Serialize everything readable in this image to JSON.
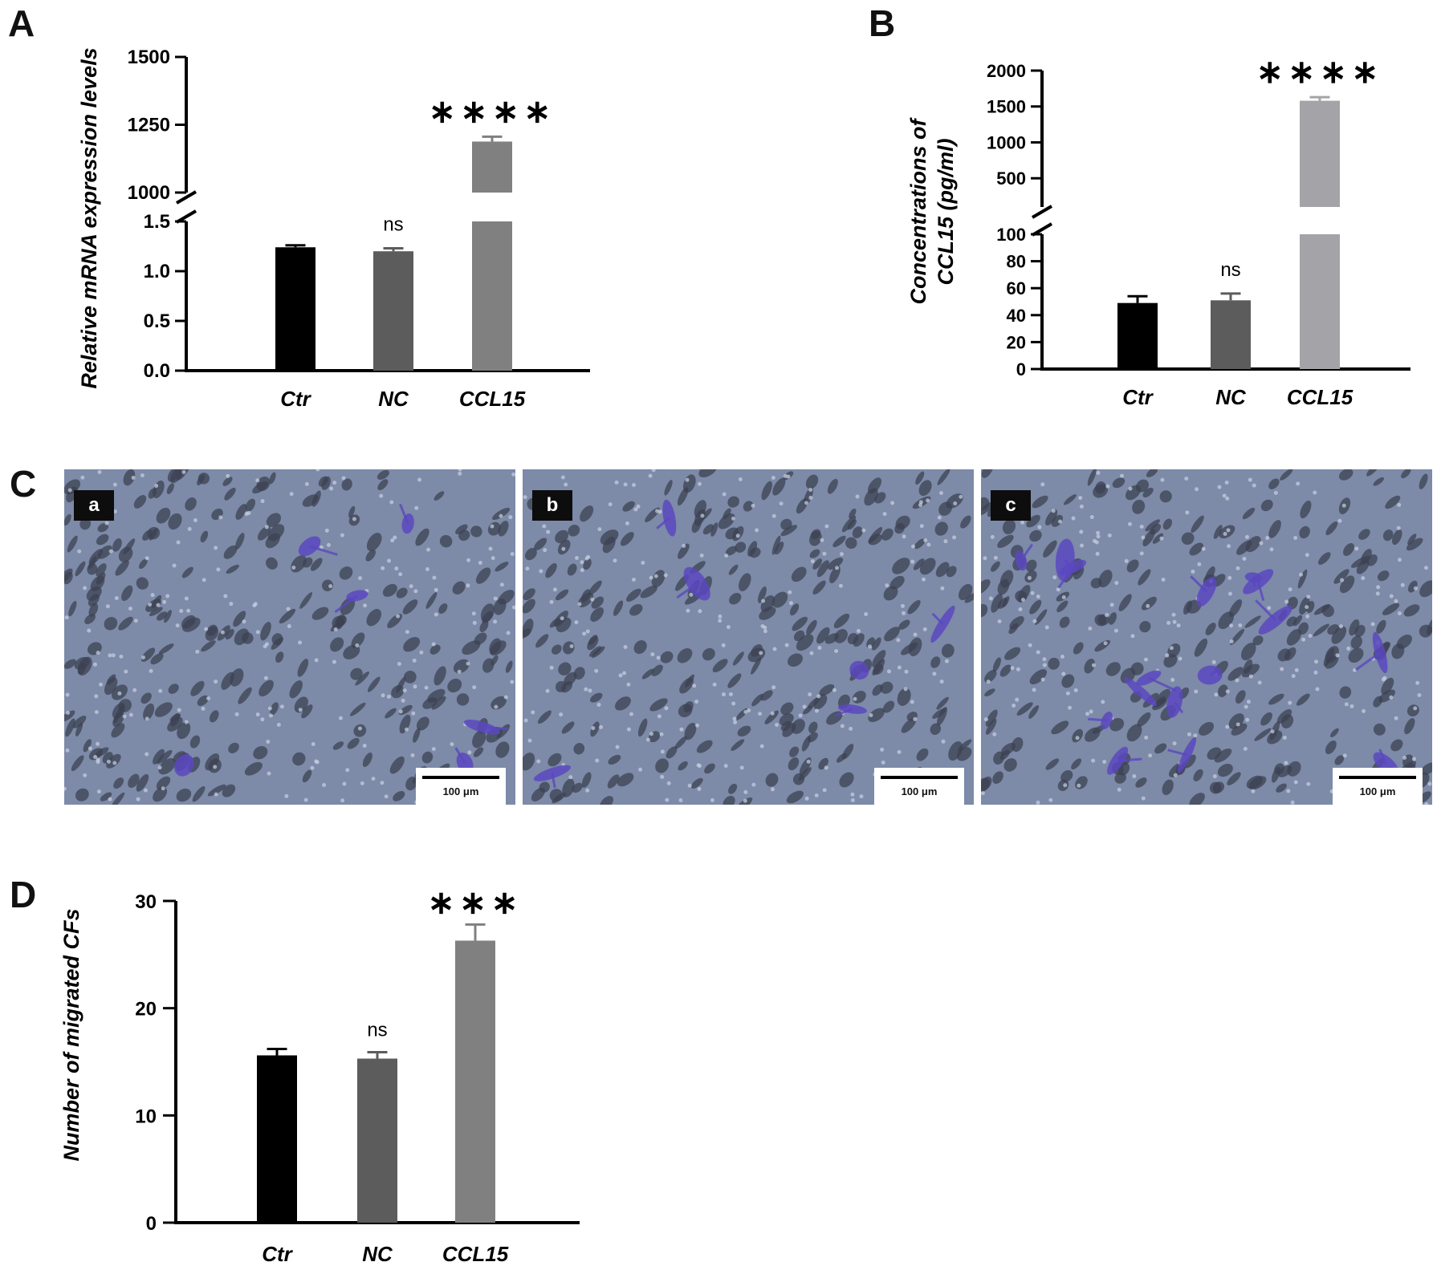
{
  "panels": {
    "A": "A",
    "B": "B",
    "C": "C",
    "D": "D"
  },
  "chart_data": [
    {
      "id": "A",
      "type": "bar",
      "ylabel": "Relative mRNA expression levels",
      "categories": [
        "Ctr",
        "NC",
        "CCL15"
      ],
      "values": [
        1.24,
        1.2,
        1188
      ],
      "errors": [
        0.02,
        0.03,
        18
      ],
      "annotations": [
        "",
        "ns",
        "****"
      ],
      "colors": [
        "#000000",
        "#5c5c5c",
        "#808080"
      ],
      "axis_break": {
        "lower": [
          0,
          1.5
        ],
        "upper": [
          1000,
          1500
        ]
      },
      "ticks_lower": [
        "0.0",
        "0.5",
        "1.0",
        "1.5"
      ],
      "ticks_upper": [
        "1000",
        "1250",
        "1500"
      ]
    },
    {
      "id": "B",
      "type": "bar",
      "ylabel": "Concentrations of CCL15 (pg/ml)",
      "ylabel_lines": [
        "Concentrations of",
        "CCL15 (pg/ml)"
      ],
      "categories": [
        "Ctr",
        "NC",
        "CCL15"
      ],
      "values": [
        49,
        51,
        1580
      ],
      "errors": [
        5,
        5,
        50
      ],
      "annotations": [
        "",
        "ns",
        "****"
      ],
      "colors": [
        "#000000",
        "#5c5c5c",
        "#a4a4a8"
      ],
      "axis_break": {
        "lower": [
          0,
          100
        ],
        "upper": [
          100,
          2000
        ]
      },
      "ticks_lower": [
        "0",
        "20",
        "40",
        "60",
        "80",
        "100"
      ],
      "ticks_upper": [
        "500",
        "1000",
        "1500",
        "2000"
      ]
    },
    {
      "id": "D",
      "type": "bar",
      "ylabel": "Number of migrated CFs",
      "categories": [
        "Ctr",
        "NC",
        "CCL15"
      ],
      "values": [
        15.6,
        15.3,
        26.3
      ],
      "errors": [
        0.6,
        0.6,
        1.5
      ],
      "annotations": [
        "",
        "ns",
        "***"
      ],
      "colors": [
        "#000000",
        "#5c5c5c",
        "#808080"
      ],
      "ylim": [
        0,
        30
      ],
      "ticks": [
        "0",
        "10",
        "20",
        "30"
      ]
    }
  ],
  "micrographs": [
    {
      "label": "a",
      "scale": "100 μm",
      "purple_cells": 6
    },
    {
      "label": "b",
      "scale": "100 μm",
      "purple_cells": 7
    },
    {
      "label": "c",
      "scale": "100 μm",
      "purple_cells": 16
    }
  ]
}
